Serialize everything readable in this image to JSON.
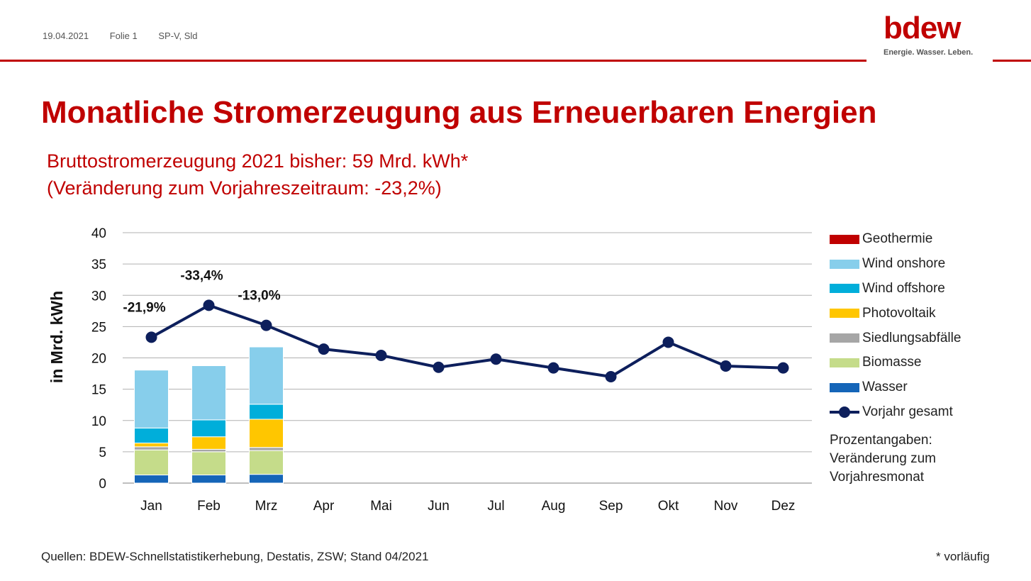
{
  "header": {
    "date": "19.04.2021",
    "slide": "Folie 1",
    "author": "SP-V, Sld"
  },
  "logo": {
    "wordmark": "bdew",
    "tagline": "Energie. Wasser. Leben."
  },
  "title": "Monatliche Stromerzeugung aus Erneuerbaren Energien",
  "subtitle_line1": "Bruttostromerzeugung 2021 bisher: 59 Mrd. kWh*",
  "subtitle_line2": "(Veränderung zum Vorjahreszeitraum: -23,2%)",
  "legend": {
    "items": [
      {
        "label": "Geothermie",
        "color": "#c00000"
      },
      {
        "label": "Wind onshore",
        "color": "#87ceeb"
      },
      {
        "label": "Wind offshore",
        "color": "#00aeda"
      },
      {
        "label": "Photovoltaik",
        "color": "#ffc600"
      },
      {
        "label": "Siedlungsabfälle",
        "color": "#a6a6a6"
      },
      {
        "label": "Biomasse",
        "color": "#c5dc8a"
      },
      {
        "label": "Wasser",
        "color": "#1565b8"
      }
    ],
    "line_label": "Vorjahr gesamt",
    "note_line1": "Prozentangaben:",
    "note_line2": "Veränderung zum",
    "note_line3": "Vorjahresmonat"
  },
  "footer": {
    "sources": "Quellen: BDEW-Schnellstatistikerhebung, Destatis, ZSW; Stand 04/2021",
    "note": "* vorläufig"
  },
  "chart_data": {
    "type": "bar",
    "stacked": true,
    "ylabel": "in Mrd. kWh",
    "ylim": [
      0,
      40
    ],
    "yticks": [
      0,
      5,
      10,
      15,
      20,
      25,
      30,
      35,
      40
    ],
    "grid": true,
    "categories": [
      "Jan",
      "Feb",
      "Mrz",
      "Apr",
      "Mai",
      "Jun",
      "Jul",
      "Aug",
      "Sep",
      "Okt",
      "Nov",
      "Dez"
    ],
    "series": [
      {
        "name": "Wasser",
        "color": "#1565b8",
        "values": [
          1.3,
          1.3,
          1.4,
          null,
          null,
          null,
          null,
          null,
          null,
          null,
          null,
          null
        ]
      },
      {
        "name": "Biomasse",
        "color": "#c5dc8a",
        "values": [
          4.0,
          3.7,
          3.8,
          null,
          null,
          null,
          null,
          null,
          null,
          null,
          null,
          null
        ]
      },
      {
        "name": "Siedlungsabfälle",
        "color": "#a6a6a6",
        "values": [
          0.5,
          0.4,
          0.5,
          null,
          null,
          null,
          null,
          null,
          null,
          null,
          null,
          null
        ]
      },
      {
        "name": "Photovoltaik",
        "color": "#ffc600",
        "values": [
          0.6,
          2.0,
          4.5,
          null,
          null,
          null,
          null,
          null,
          null,
          null,
          null,
          null
        ]
      },
      {
        "name": "Wind offshore",
        "color": "#00aeda",
        "values": [
          2.4,
          2.7,
          2.4,
          null,
          null,
          null,
          null,
          null,
          null,
          null,
          null,
          null
        ]
      },
      {
        "name": "Wind onshore",
        "color": "#87ceeb",
        "values": [
          9.3,
          8.7,
          9.2,
          null,
          null,
          null,
          null,
          null,
          null,
          null,
          null,
          null
        ]
      },
      {
        "name": "Geothermie",
        "color": "#c00000",
        "values": [
          0.02,
          0.02,
          0.02,
          null,
          null,
          null,
          null,
          null,
          null,
          null,
          null,
          null
        ]
      }
    ],
    "line_series": {
      "name": "Vorjahr gesamt",
      "color": "#0d1f5c",
      "values": [
        23.3,
        28.4,
        25.2,
        21.4,
        20.4,
        18.5,
        19.8,
        18.4,
        17.0,
        22.5,
        18.7,
        18.4
      ]
    },
    "annotations": [
      "-21,9%",
      "-33,4%",
      "-13,0%",
      "",
      "",
      "",
      "",
      "",
      "",
      "",
      "",
      ""
    ]
  }
}
